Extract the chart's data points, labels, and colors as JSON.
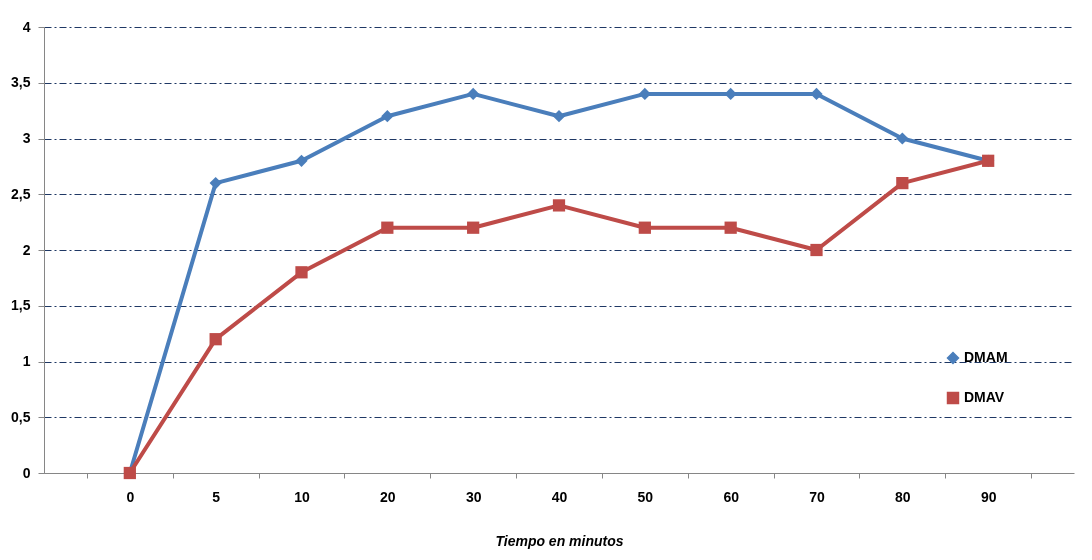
{
  "chart_data": {
    "type": "line",
    "xlabel": "Tiempo en minutos",
    "categories": [
      "0",
      "5",
      "10",
      "20",
      "30",
      "40",
      "50",
      "60",
      "70",
      "80",
      "90"
    ],
    "series": [
      {
        "name": "DMAM",
        "color": "#4a7ebb",
        "marker": "diamond",
        "values": [
          0,
          2.6,
          2.8,
          3.2,
          3.4,
          3.2,
          3.4,
          3.4,
          3.4,
          3.0,
          2.8
        ]
      },
      {
        "name": "DMAV",
        "color": "#be4b48",
        "marker": "square",
        "values": [
          0,
          1.2,
          1.8,
          2.2,
          2.2,
          2.4,
          2.2,
          2.2,
          2.0,
          2.6,
          2.8
        ]
      }
    ],
    "ylim": [
      0,
      4
    ],
    "yticks": [
      0,
      {
        "value": 0.5,
        "label": "0,5"
      },
      1,
      {
        "value": 1.5,
        "label": "1,5"
      },
      2,
      {
        "value": 2.5,
        "label": "2,5"
      },
      3,
      {
        "value": 3.5,
        "label": "3,5"
      },
      4
    ],
    "grid": "y",
    "legend": "bottom right",
    "line_style": "solid"
  }
}
